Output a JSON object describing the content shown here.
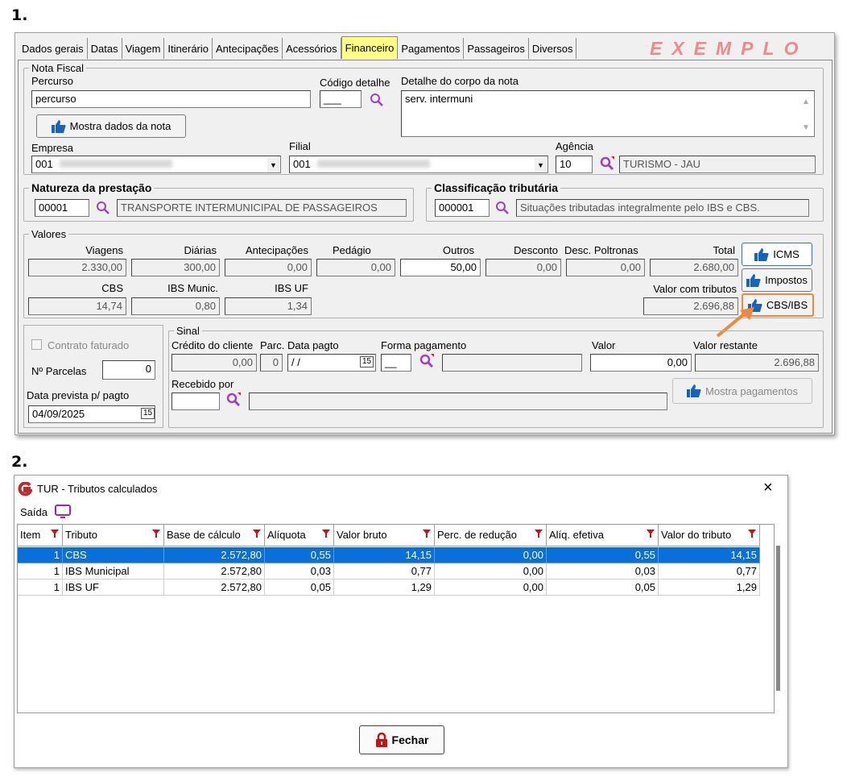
{
  "steps": {
    "one": "1.",
    "two": "2."
  },
  "main_window": {
    "tabs": [
      "Dados gerais",
      "Datas",
      "Viagem",
      "Itinerário",
      "Antecipações",
      "Acessórios",
      "Financeiro",
      "Pagamentos",
      "Passageiros",
      "Diversos"
    ],
    "active_tab": "Financeiro",
    "watermark": "EXEMPLO",
    "nota_fiscal": {
      "legend": "Nota Fiscal",
      "percurso_label": "Percurso",
      "percurso_value": "percurso",
      "codigo_label": "Código detalhe",
      "codigo_value": "___",
      "detalhe_label": "Detalhe do corpo da nota",
      "detalhe_value": "serv. intermuni",
      "mostra_btn": "Mostra dados da nota",
      "empresa_label": "Empresa",
      "empresa_value": "001",
      "filial_label": "Filial",
      "filial_value": "001",
      "agencia_label": "Agência",
      "agencia_value": "10",
      "agencia_name": "TURISMO - JAU"
    },
    "natureza": {
      "legend": "Natureza da prestação",
      "code": "00001",
      "desc": "TRANSPORTE INTERMUNICIPAL DE PASSAGEIROS"
    },
    "classificacao": {
      "legend": "Classificação tributária",
      "code": "000001",
      "desc": "Situações tributadas integralmente pelo IBS e CBS."
    },
    "valores": {
      "legend": "Valores",
      "labels": {
        "viagens": "Viagens",
        "diarias": "Diárias",
        "antecipacoes": "Antecipações",
        "pedagio": "Pedágio",
        "outros": "Outros",
        "desconto": "Desconto",
        "desc_poltronas": "Desc. Poltronas",
        "total": "Total",
        "cbs": "CBS",
        "ibs_munic": "IBS Munic.",
        "ibs_uf": "IBS UF",
        "valor_com_tributos": "Valor com tributos"
      },
      "values": {
        "viagens": "2.330,00",
        "diarias": "300,00",
        "antecipacoes": "0,00",
        "pedagio": "0,00",
        "outros": "50,00",
        "desconto": "0,00",
        "desc_poltronas": "0,00",
        "total": "2.680,00",
        "cbs": "14,74",
        "ibs_munic": "0,80",
        "ibs_uf": "1,34",
        "valor_com_tributos": "2.696,88"
      },
      "buttons": {
        "icms": "ICMS",
        "impostos": "Impostos",
        "cbs_ibs": "CBS/IBS"
      }
    },
    "left_box": {
      "contrato": "Contrato faturado",
      "parcelas_label": "Nº Parcelas",
      "parcelas_value": "0",
      "data_label": "Data prevista p/ pagto",
      "data_value": "04/09/2025"
    },
    "sinal": {
      "legend": "Sinal",
      "credito_label": "Crédito do cliente",
      "credito_value": "0,00",
      "parc_label": "Parc.",
      "parc_value": "0",
      "data_label": "Data pagto",
      "data_value": " / /",
      "forma_label": "Forma pagamento",
      "forma_value": "__",
      "valor_label": "Valor",
      "valor_value": "0,00",
      "restante_label": "Valor restante",
      "restante_value": "2.696,88",
      "recebido_label": "Recebido por",
      "mostra_pag_btn": "Mostra pagamentos"
    }
  },
  "dialog": {
    "title": "TUR - Tributos calculados",
    "close": "×",
    "menu_saida": "Saída",
    "columns": [
      "Item",
      "Tributo",
      "Base de cálculo",
      "Alíquota",
      "Valor bruto",
      "Perc. de redução",
      "Alíq. efetiva",
      "Valor do tributo"
    ],
    "rows": [
      [
        "1",
        "CBS",
        "2.572,80",
        "0,55",
        "14,15",
        "0,00",
        "0,55",
        "14,15"
      ],
      [
        "1",
        "IBS Municipal",
        "2.572,80",
        "0,03",
        "0,77",
        "0,00",
        "0,03",
        "0,77"
      ],
      [
        "1",
        "IBS UF",
        "2.572,80",
        "0,05",
        "1,29",
        "0,00",
        "0,05",
        "1,29"
      ]
    ],
    "fechar": "Fechar"
  },
  "colors": {
    "active_tab": "#ffff80",
    "watermark": "#f08a8a",
    "selected_row": "#0a6fd8",
    "arrow": "#f0883a",
    "icon_blue": "#1565c0",
    "magnifier": "#a040c0",
    "lock_red": "#d01010"
  }
}
